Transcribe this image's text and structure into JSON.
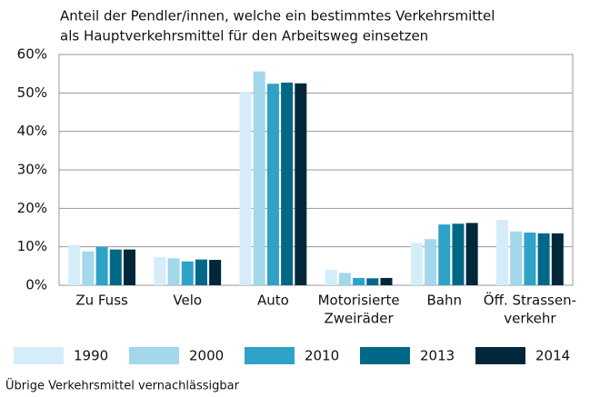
{
  "chart_data": {
    "type": "bar",
    "title": [
      "Anteil der Pendler/innen, welche ein bestimmtes Verkehrsmittel",
      "als Hauptverkehrsmittel für den Arbeitsweg einsetzen"
    ],
    "categories": [
      [
        "Zu Fuss"
      ],
      [
        "Velo"
      ],
      [
        "Auto"
      ],
      [
        "Motorisierte",
        "Zweiräder"
      ],
      [
        "Bahn"
      ],
      [
        "Öff. Strassen-",
        "verkehr"
      ]
    ],
    "series": [
      {
        "name": "1990",
        "color": "#d4edf9",
        "values": [
          10.5,
          7.3,
          50.3,
          4.0,
          11.0,
          17.0
        ]
      },
      {
        "name": "2000",
        "color": "#a2d7ec",
        "values": [
          8.8,
          7.0,
          55.6,
          3.2,
          12.0,
          14.0
        ]
      },
      {
        "name": "2010",
        "color": "#2fa2c8",
        "values": [
          10.0,
          6.2,
          52.4,
          1.9,
          15.8,
          13.7
        ]
      },
      {
        "name": "2013",
        "color": "#006887",
        "values": [
          9.3,
          6.7,
          52.7,
          1.8,
          16.0,
          13.5
        ]
      },
      {
        "name": "2014",
        "color": "#00283a",
        "values": [
          9.3,
          6.6,
          52.5,
          1.9,
          16.2,
          13.5
        ]
      }
    ],
    "ylim": [
      0,
      60
    ],
    "yticks": [
      {
        "value": 0,
        "label": "0%"
      },
      {
        "value": 10,
        "label": "10%"
      },
      {
        "value": 20,
        "label": "20%"
      },
      {
        "value": 30,
        "label": "30%"
      },
      {
        "value": 40,
        "label": "40%"
      },
      {
        "value": 50,
        "label": "50%"
      },
      {
        "value": 60,
        "label": "60%"
      }
    ],
    "grid": true,
    "legend": "bottom",
    "footnote": "Übrige Verkehrsmittel vernachlässigbar"
  }
}
